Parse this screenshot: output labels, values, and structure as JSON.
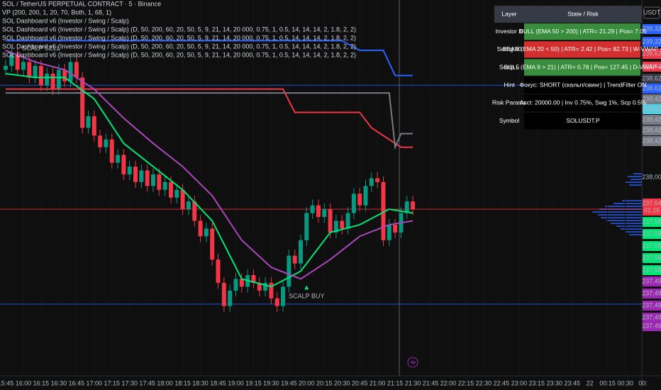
{
  "header": {
    "lines": [
      "SOL / TetherUS PERPETUAL CONTRACT · 5 · Binance",
      "VP (200, 200, 1, 20, 70, Both, 1, 68, 1)",
      "SOL Dashboard v6 (Investor / Swing / Scalp)",
      "SOL Dashboard v6 (Investor / Swing / Scalp) (D, 50, 200, 60, 20, 50, 5, 9, 21, 14, 20 000, 0.75, 1, 0.5, 14, 14, 14, 2, 1.8, 2, 2)",
      "SOL Dashboard v6 (Investor / Swing / Scalp) (D, 50, 200, 60, 20, 50, 5, 9, 21, 14, 20 000, 0.75, 1, 0.5, 14, 14, 14, 2, 1.8, 2, 2)",
      "SOL Dashboard v6 (Investor / Swing / Scalp) (D, 50, 200, 60, 20, 50, 5, 9, 21, 14, 20 000, 0.75, 1, 0.5, 14, 14, 14, 2, 1.8, 2, 2)",
      "SOL Dashboard v6 (Investor / Swing / Scalp) (D, 50, 200, 60, 20, 50, 5, 9, 21, 14, 20 000, 0.75, 1, 0.5, 14, 14, 14, 2, 1.8, 2, 2)"
    ],
    "currency": "USDT"
  },
  "table": {
    "header": [
      "Layer",
      "State / Risk"
    ],
    "rows": [
      {
        "cells": [
          "Investor D",
          "BULL (EMA 50 > 200) | ATR= 21.29 | Pos= 7.05"
        ],
        "color": "#388e3c"
      },
      {
        "cells": [
          "Swing 60",
          "BEAR (EMA 20 < 50) | ATR= 2.42 | Pos= 82.73 | W-VWAP <"
        ],
        "color": "#d32f2f"
      },
      {
        "cells": [
          "Scalp 5",
          "BULL (EMA 9 > 21) | ATR= 0.78 | Pos= 127.45 | D-VWAP <"
        ],
        "color": "#388e3c"
      },
      {
        "cells": [
          "Hint",
          "Фокус: SHORT (скальп/свинг) | TrendFilter ON"
        ],
        "color": "#000000"
      },
      {
        "cells": [
          "Risk Params",
          "Acct: 20000.00 | Inv 0.75%, Swg 1%, Scp 0.5%"
        ],
        "color": "#000000"
      },
      {
        "cells": [
          "Symbol",
          "SOLUSDT.P"
        ],
        "color": "#000000"
      }
    ]
  },
  "price_tags": [
    {
      "label": "239,32",
      "color": "#2962ff"
    },
    {
      "label": "239,32",
      "color": "#2962ff"
    },
    {
      "label": "238,62",
      "color": "#f23645"
    },
    {
      "label": "238,62",
      "color": "#f23645"
    },
    {
      "label": "238,62",
      "color": "#363a45"
    },
    {
      "label": "238,62",
      "color": "#2962ff"
    },
    {
      "label": "238,42",
      "color": "#787b86"
    },
    {
      "label": "238,42",
      "color": "#4dd0e1"
    },
    {
      "label": "238,42",
      "color": "#787b86"
    },
    {
      "label": "238,42",
      "color": "#787b86"
    },
    {
      "label": "238,42",
      "color": "#787b86"
    },
    {
      "label": "238,00",
      "color": "#0f0f0f"
    },
    {
      "label": "237,64",
      "color": "#f23645"
    },
    {
      "label": "01:26",
      "color": "#f23645"
    },
    {
      "label": "237,58",
      "color": "#00e676"
    },
    {
      "label": "237,58",
      "color": "#00e676"
    },
    {
      "label": "237,58",
      "color": "#00e676"
    },
    {
      "label": "237,58",
      "color": "#00e676"
    },
    {
      "label": "237,58",
      "color": "#00e676"
    },
    {
      "label": "237,49",
      "color": "#9c27b0"
    },
    {
      "label": "237,49",
      "color": "#9c27b0"
    },
    {
      "label": "237,49",
      "color": "#9c27b0"
    },
    {
      "label": "237,49",
      "color": "#9c27b0"
    },
    {
      "label": "237,49",
      "color": "#9c27b0"
    }
  ],
  "chart_data": {
    "type": "candlestick",
    "up_color": "#089981",
    "down_color": "#f23645",
    "ylim": [
      237.12,
      239.06
    ],
    "xticks": [
      "15:45",
      "16:00",
      "16:15",
      "16:30",
      "16:45",
      "17:00",
      "17:15",
      "17:30",
      "17:45",
      "18:00",
      "18:15",
      "18:30",
      "18:45",
      "19:00",
      "19:15",
      "19:30",
      "19:45",
      "20:00",
      "20:15",
      "20:30",
      "20:45",
      "21:00",
      "21:15",
      "21:30",
      "21:45",
      "22:00",
      "22:15",
      "22:30",
      "22:45",
      "23:00",
      "23:15",
      "23:30",
      "23:45",
      "22",
      "00:15",
      "00:30",
      "00:"
    ],
    "open": [
      238.7,
      238.72,
      238.78,
      238.7,
      238.74,
      238.66,
      238.72,
      238.62,
      238.68,
      238.6,
      238.7,
      238.64,
      238.74,
      238.66,
      238.4,
      238.46,
      238.36,
      238.3,
      238.34,
      238.22,
      238.26,
      238.16,
      238.2,
      238.12,
      238.18,
      238.1,
      238.16,
      238.08,
      238.12,
      238.04,
      238.08,
      237.98,
      238.02,
      237.92,
      237.84,
      237.88,
      237.72,
      237.6,
      237.48,
      237.56,
      237.62,
      237.58,
      237.64,
      237.6,
      237.56,
      237.6,
      237.52,
      237.48,
      237.58,
      237.74,
      237.7,
      237.82,
      237.96,
      238.0,
      237.94,
      237.98,
      237.86,
      237.92,
      237.88,
      237.96,
      238.06,
      238.0,
      238.1,
      238.14,
      238.12,
      237.82,
      237.9,
      237.86,
      237.96,
      238.02
    ],
    "high": [
      238.75,
      238.81,
      238.81,
      238.77,
      238.77,
      238.75,
      238.75,
      238.71,
      238.71,
      238.73,
      238.73,
      238.77,
      238.77,
      238.69,
      238.49,
      238.49,
      238.39,
      238.37,
      238.37,
      238.29,
      238.29,
      238.23,
      238.23,
      238.21,
      238.21,
      238.19,
      238.19,
      238.15,
      238.15,
      238.11,
      238.11,
      238.05,
      238.05,
      237.95,
      237.91,
      237.91,
      237.75,
      237.63,
      237.59,
      237.65,
      237.65,
      237.67,
      237.67,
      237.63,
      237.63,
      237.63,
      237.55,
      237.61,
      237.77,
      237.77,
      237.85,
      237.99,
      238.03,
      238.03,
      238.01,
      238.01,
      237.95,
      237.95,
      237.99,
      238.09,
      238.09,
      238.13,
      238.17,
      238.17,
      238.15,
      237.93,
      237.93,
      237.99,
      238.05,
      238.05
    ],
    "low": [
      238.67,
      238.69,
      238.67,
      238.67,
      238.63,
      238.63,
      238.59,
      238.59,
      238.57,
      238.57,
      238.61,
      238.61,
      238.63,
      238.37,
      238.37,
      238.33,
      238.27,
      238.27,
      238.19,
      238.19,
      238.13,
      238.13,
      238.09,
      238.09,
      238.07,
      238.07,
      238.05,
      238.05,
      238.01,
      238.01,
      237.95,
      237.95,
      237.89,
      237.81,
      237.81,
      237.69,
      237.57,
      237.45,
      237.45,
      237.53,
      237.55,
      237.55,
      237.57,
      237.53,
      237.53,
      237.49,
      237.45,
      237.45,
      237.55,
      237.67,
      237.67,
      237.79,
      237.93,
      237.91,
      237.91,
      237.83,
      237.83,
      237.85,
      237.85,
      237.93,
      237.97,
      237.97,
      238.07,
      238.09,
      237.79,
      237.79,
      237.83,
      237.83,
      237.93,
      237.95
    ],
    "close": [
      238.72,
      238.78,
      238.7,
      238.74,
      238.66,
      238.72,
      238.62,
      238.68,
      238.6,
      238.7,
      238.64,
      238.74,
      238.66,
      238.4,
      238.46,
      238.36,
      238.3,
      238.34,
      238.22,
      238.26,
      238.16,
      238.2,
      238.12,
      238.18,
      238.1,
      238.16,
      238.08,
      238.12,
      238.04,
      238.08,
      237.98,
      238.02,
      237.92,
      237.84,
      237.88,
      237.72,
      237.6,
      237.48,
      237.56,
      237.62,
      237.58,
      237.64,
      237.6,
      237.56,
      237.6,
      237.52,
      237.48,
      237.58,
      237.74,
      237.7,
      237.82,
      237.96,
      238.0,
      237.94,
      237.98,
      237.86,
      237.92,
      237.88,
      237.96,
      238.06,
      238.0,
      238.1,
      238.14,
      238.12,
      237.82,
      237.9,
      237.86,
      237.96,
      238.02,
      237.98
    ],
    "lines": [
      {
        "color": "#2962ff",
        "x": [
          0,
          57,
          60,
          64,
          66,
          69
        ],
        "values": [
          238.85,
          238.85,
          238.8,
          238.8,
          238.67,
          238.67
        ]
      },
      {
        "color": "#f23645",
        "x": [
          0,
          47,
          49,
          60,
          62,
          67,
          69
        ],
        "values": [
          238.6,
          238.6,
          238.48,
          238.48,
          238.4,
          238.3,
          238.3
        ]
      },
      {
        "color": "#787b86",
        "x": [
          0,
          65,
          66,
          67,
          69
        ],
        "values": [
          238.58,
          238.58,
          238.3,
          238.37,
          238.37
        ]
      },
      {
        "color": "#00e676",
        "x": [
          0,
          5,
          10,
          15,
          20,
          25,
          30,
          35,
          40,
          45,
          50,
          55,
          60,
          65,
          69
        ],
        "values": [
          238.68,
          238.66,
          238.66,
          238.55,
          238.32,
          238.2,
          238.08,
          237.92,
          237.62,
          237.58,
          237.66,
          237.86,
          237.9,
          237.98,
          237.96
        ]
      },
      {
        "color": "#ab47bc",
        "x": [
          0,
          5,
          10,
          15,
          20,
          25,
          30,
          35,
          40,
          45,
          50,
          55,
          60,
          65,
          69
        ],
        "values": [
          238.8,
          238.74,
          238.7,
          238.6,
          238.45,
          238.32,
          238.2,
          238.05,
          237.82,
          237.68,
          237.62,
          237.72,
          237.84,
          237.9,
          237.92
        ]
      }
    ],
    "levels": [
      {
        "value": 238.62,
        "color": "#2962ff"
      },
      {
        "value": 237.49,
        "color": "#2962ff"
      },
      {
        "value": 237.98,
        "color": "#f23645"
      }
    ],
    "annotations": [
      {
        "text": "SCALP SELL",
        "x": 6,
        "value": 238.86
      },
      {
        "text": "SCALP BUY",
        "x": 51,
        "value": 237.58
      }
    ]
  }
}
